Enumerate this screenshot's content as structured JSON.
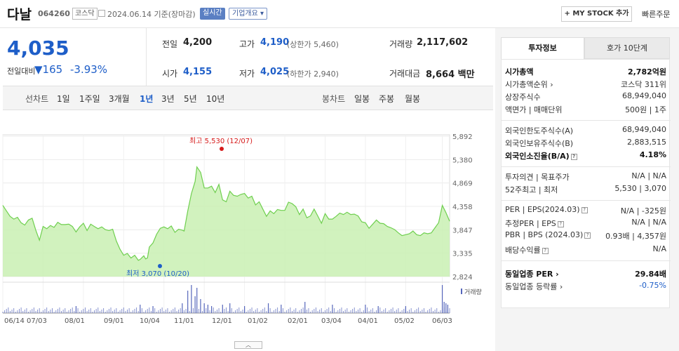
{
  "header": {
    "name": "다날",
    "code": "064260",
    "market": "코스닥",
    "date": "2024.06.14  기준(장마감)",
    "live_badge": "실시간",
    "company_info": "기업개요 ▾",
    "my_stock": "+ MY STOCK 추가",
    "quick_order": "빠른주문"
  },
  "summary": {
    "price": "4,035",
    "change_label": "전일대비",
    "change_value": "165",
    "change_pct": "-3.93%",
    "prev_label": "전일",
    "prev_value": "4,200",
    "high_label": "고가",
    "high_value": "4,190",
    "upper_limit": "(상한가 5,460)",
    "volume_label": "거래량",
    "volume_value": "2,117,602",
    "open_label": "시가",
    "open_value": "4,155",
    "low_label": "저가",
    "low_value": "4,025",
    "lower_limit": "(하한가 2,940)",
    "amount_label": "거래대금",
    "amount_value": "8,664 백만"
  },
  "toolbar": {
    "line_label": "선차트",
    "periods": [
      "1일",
      "1주일",
      "3개월",
      "1년",
      "3년",
      "5년",
      "10년"
    ],
    "active_period": "1년",
    "candle_label": "봉차트",
    "candles": [
      "일봉",
      "주봉",
      "월봉"
    ]
  },
  "chart_data": {
    "type": "area",
    "title": "",
    "xlabel": "",
    "ylabel": "",
    "x_ticks": [
      "06/14 07/03",
      "08/01",
      "09/01",
      "10/04",
      "11/01",
      "12/01",
      "01/02",
      "02/01",
      "03/04",
      "04/01",
      "05/02",
      "06/03"
    ],
    "y_ticks": [
      "5,892",
      "5,380",
      "4,869",
      "4,358",
      "3,847",
      "3,335",
      "2,824"
    ],
    "ylim": [
      2824,
      5892
    ],
    "high_annotation": "최고 5,530 (12/07)",
    "low_annotation": "최저 3,070 (10/20)",
    "volume_legend": "거래량",
    "grid": true,
    "series": [
      {
        "points": [
          [
            0,
            4380
          ],
          [
            2,
            4260
          ],
          [
            4,
            4140
          ],
          [
            6,
            4080
          ],
          [
            8,
            4120
          ],
          [
            10,
            4000
          ],
          [
            12,
            3950
          ],
          [
            14,
            4060
          ],
          [
            16,
            4100
          ],
          [
            18,
            3840
          ],
          [
            20,
            3620
          ],
          [
            22,
            3920
          ],
          [
            24,
            3870
          ],
          [
            26,
            3940
          ],
          [
            28,
            3900
          ],
          [
            30,
            4010
          ],
          [
            32,
            3960
          ],
          [
            34,
            3960
          ],
          [
            36,
            3970
          ],
          [
            38,
            3920
          ],
          [
            40,
            3800
          ],
          [
            42,
            3910
          ],
          [
            44,
            3990
          ],
          [
            46,
            3830
          ],
          [
            48,
            3970
          ],
          [
            50,
            3920
          ],
          [
            52,
            3870
          ],
          [
            54,
            3910
          ],
          [
            56,
            3850
          ],
          [
            58,
            3830
          ],
          [
            60,
            3860
          ],
          [
            62,
            3600
          ],
          [
            64,
            3420
          ],
          [
            66,
            3290
          ],
          [
            68,
            3330
          ],
          [
            70,
            3230
          ],
          [
            72,
            3290
          ],
          [
            74,
            3180
          ],
          [
            75,
            3200
          ],
          [
            77,
            3280
          ],
          [
            78,
            3210
          ],
          [
            79,
            3230
          ],
          [
            80,
            3470
          ],
          [
            82,
            3560
          ],
          [
            84,
            3750
          ],
          [
            86,
            3880
          ],
          [
            88,
            3910
          ],
          [
            90,
            3870
          ],
          [
            92,
            3930
          ],
          [
            94,
            3790
          ],
          [
            96,
            3860
          ],
          [
            98,
            3840
          ],
          [
            99,
            3820
          ],
          [
            101,
            4260
          ],
          [
            103,
            4640
          ],
          [
            105,
            4900
          ],
          [
            106,
            5220
          ],
          [
            108,
            5100
          ],
          [
            110,
            4760
          ],
          [
            112,
            4760
          ],
          [
            114,
            4800
          ],
          [
            116,
            4660
          ],
          [
            118,
            4840
          ],
          [
            120,
            4500
          ],
          [
            122,
            4460
          ],
          [
            124,
            4690
          ],
          [
            126,
            4600
          ],
          [
            128,
            4580
          ],
          [
            130,
            4620
          ],
          [
            132,
            4640
          ],
          [
            134,
            4540
          ],
          [
            136,
            4580
          ],
          [
            138,
            4390
          ],
          [
            140,
            4460
          ],
          [
            142,
            4300
          ],
          [
            144,
            4140
          ],
          [
            146,
            4260
          ],
          [
            148,
            4200
          ],
          [
            150,
            4290
          ],
          [
            152,
            4270
          ],
          [
            154,
            4270
          ],
          [
            156,
            4450
          ],
          [
            158,
            4420
          ],
          [
            160,
            4350
          ],
          [
            162,
            4180
          ],
          [
            164,
            4300
          ],
          [
            166,
            4110
          ],
          [
            168,
            4150
          ],
          [
            170,
            4300
          ],
          [
            172,
            4150
          ],
          [
            174,
            3990
          ],
          [
            176,
            4200
          ],
          [
            178,
            4080
          ],
          [
            180,
            4080
          ],
          [
            182,
            4140
          ],
          [
            184,
            4210
          ],
          [
            186,
            4180
          ],
          [
            188,
            4230
          ],
          [
            190,
            4180
          ],
          [
            192,
            4190
          ],
          [
            194,
            4150
          ],
          [
            196,
            4020
          ],
          [
            198,
            4000
          ],
          [
            200,
            3880
          ],
          [
            202,
            3970
          ],
          [
            204,
            4060
          ],
          [
            206,
            3990
          ],
          [
            208,
            3980
          ],
          [
            210,
            3920
          ],
          [
            212,
            3890
          ],
          [
            214,
            3850
          ],
          [
            216,
            3780
          ],
          [
            218,
            3720
          ],
          [
            220,
            3740
          ],
          [
            222,
            3760
          ],
          [
            224,
            3820
          ],
          [
            226,
            3740
          ],
          [
            228,
            3720
          ],
          [
            230,
            3780
          ],
          [
            232,
            3760
          ],
          [
            234,
            3780
          ],
          [
            236,
            3890
          ],
          [
            238,
            4000
          ],
          [
            240,
            4380
          ],
          [
            242,
            4220
          ],
          [
            244,
            4035
          ]
        ]
      }
    ],
    "volume_spikes": [
      [
        40,
        0.25
      ],
      [
        75,
        0.3
      ],
      [
        82,
        0.25
      ],
      [
        98,
        0.35
      ],
      [
        101,
        0.8
      ],
      [
        103,
        1.0
      ],
      [
        105,
        0.6
      ],
      [
        106,
        0.9
      ],
      [
        108,
        0.5
      ],
      [
        110,
        0.35
      ],
      [
        112,
        0.3
      ],
      [
        114,
        0.25
      ],
      [
        120,
        0.3
      ],
      [
        124,
        0.35
      ],
      [
        132,
        0.25
      ],
      [
        145,
        0.35
      ],
      [
        152,
        0.3
      ],
      [
        165,
        0.4
      ],
      [
        180,
        0.3
      ],
      [
        198,
        0.3
      ],
      [
        205,
        0.25
      ],
      [
        220,
        0.25
      ],
      [
        240,
        1.0
      ],
      [
        241,
        0.4
      ],
      [
        242,
        0.35
      ],
      [
        243,
        0.3
      ]
    ]
  },
  "panel": {
    "tab_active": "투자정보",
    "tab_other": "호가 10단계",
    "rows": [
      {
        "label": "시가총액",
        "value": "2,782억원",
        "bold": true
      },
      {
        "label": "시가총액순위 ›",
        "value": "코스닥 311위"
      },
      {
        "label": "상장주식수",
        "value": "68,949,040"
      },
      {
        "label": "액면가 | 매매단위",
        "value": "500원 | 1주"
      },
      {
        "label": "외국인한도주식수(A)",
        "value": "68,949,040"
      },
      {
        "label": "외국인보유주식수(B)",
        "value": "2,883,515"
      },
      {
        "label": "외국인소진율(B/A)",
        "value": "4.18%",
        "bold": true
      },
      {
        "label": "투자의견 | 목표주가",
        "value": "N/A  |  N/A"
      },
      {
        "label": "52주최고 | 최저",
        "value": "5,530  |  3,070"
      },
      {
        "label": "PER | EPS(2024.03)",
        "value": "N/A  |  -325원"
      },
      {
        "label": "추정PER | EPS",
        "value": "N/A  |  N/A"
      },
      {
        "label": "PBR | BPS (2024.03)",
        "value": "0.93배  |  4,357원"
      },
      {
        "label": "배당수익률",
        "value": "N/A"
      },
      {
        "label": "동일업종 PER ›",
        "value": "29.84배",
        "bold": true
      },
      {
        "label": "동일업종 등락률 ›",
        "value": "-0.75%",
        "blue": true
      }
    ]
  },
  "colors": {
    "down_blue": "#1e5ec8",
    "up_red": "#d61a1a",
    "area_fill": "#c9f0b3",
    "area_line": "#6fcf4f",
    "volume_bar": "#5566bb"
  }
}
